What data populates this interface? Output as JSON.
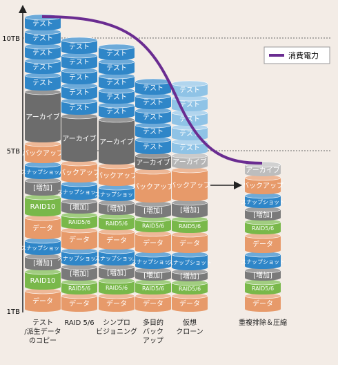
{
  "axis": {
    "ticks": [
      "10TB",
      "5TB",
      "1TB"
    ]
  },
  "legend": {
    "label": "消費電力",
    "color": "#6a2c91"
  },
  "columns": [
    {
      "label": [
        "テスト",
        "/派生データ",
        "のコピー"
      ],
      "segments": [
        {
          "label": "テスト",
          "color": "#2f86c8"
        },
        {
          "label": "テスト",
          "color": "#2f86c8"
        },
        {
          "label": "テスト",
          "color": "#2f86c8"
        },
        {
          "label": "テスト",
          "color": "#2f86c8"
        },
        {
          "label": "テスト",
          "color": "#2f86c8"
        },
        {
          "label": "アーカイブ",
          "color": "#6c6c6c"
        },
        {
          "label": "バックアップ",
          "color": "#e79a6a"
        },
        {
          "label": "スナップショット",
          "color": "#2f86c8"
        },
        {
          "label": "[増加]",
          "color": "#7a7a7a"
        },
        {
          "label": "RAID10",
          "color": "#79b84a"
        },
        {
          "label": "データ",
          "color": "#e79a6a"
        },
        {
          "label": "スナップショット",
          "color": "#2f86c8"
        },
        {
          "label": "[増加]",
          "color": "#7a7a7a"
        },
        {
          "label": "RAID10",
          "color": "#79b84a"
        },
        {
          "label": "データ",
          "color": "#e79a6a"
        }
      ]
    },
    {
      "label": [
        "RAID 5/6"
      ],
      "segments": [
        {
          "label": "テスト",
          "color": "#2f86c8"
        },
        {
          "label": "テスト",
          "color": "#2f86c8"
        },
        {
          "label": "テスト",
          "color": "#2f86c8"
        },
        {
          "label": "テスト",
          "color": "#2f86c8"
        },
        {
          "label": "テスト",
          "color": "#2f86c8"
        },
        {
          "label": "アーカイブ",
          "color": "#6c6c6c"
        },
        {
          "label": "バックアップ",
          "color": "#e79a6a"
        },
        {
          "label": "スナップショット",
          "color": "#2f86c8"
        },
        {
          "label": "[増加]",
          "color": "#7a7a7a"
        },
        {
          "label": "RAID5/6",
          "color": "#79b84a"
        },
        {
          "label": "データ",
          "color": "#e79a6a"
        },
        {
          "label": "スナップショット",
          "color": "#2f86c8"
        },
        {
          "label": "[増加]",
          "color": "#7a7a7a"
        },
        {
          "label": "RAID5/6",
          "color": "#79b84a"
        },
        {
          "label": "データ",
          "color": "#e79a6a"
        }
      ]
    },
    {
      "label": [
        "シンプロ",
        "ビジョニング"
      ],
      "segments": [
        {
          "label": "テスト",
          "color": "#2f86c8"
        },
        {
          "label": "テスト",
          "color": "#2f86c8"
        },
        {
          "label": "テスト",
          "color": "#2f86c8"
        },
        {
          "label": "テスト",
          "color": "#2f86c8"
        },
        {
          "label": "テスト",
          "color": "#2f86c8"
        },
        {
          "label": "アーカイブ",
          "color": "#6c6c6c"
        },
        {
          "label": "バックアップ",
          "color": "#e79a6a"
        },
        {
          "label": "スナップショット",
          "color": "#2f86c8"
        },
        {
          "label": "[増加]",
          "color": "#7a7a7a"
        },
        {
          "label": "RAID5/6",
          "color": "#79b84a"
        },
        {
          "label": "データ",
          "color": "#e79a6a"
        },
        {
          "label": "スナップショット",
          "color": "#2f86c8"
        },
        {
          "label": "[増加]",
          "color": "#7a7a7a"
        },
        {
          "label": "RAID5/6",
          "color": "#79b84a"
        },
        {
          "label": "データ",
          "color": "#e79a6a"
        }
      ]
    },
    {
      "label": [
        "多目的",
        "バック",
        "アップ"
      ],
      "segments": [
        {
          "label": "テスト",
          "color": "#2f86c8"
        },
        {
          "label": "テスト",
          "color": "#2f86c8"
        },
        {
          "label": "テスト",
          "color": "#2f86c8"
        },
        {
          "label": "テスト",
          "color": "#2f86c8"
        },
        {
          "label": "テスト",
          "color": "#2f86c8"
        },
        {
          "label": "アーカイブ",
          "color": "#6c6c6c"
        },
        {
          "label": "バックアップ",
          "color": "#e79a6a"
        },
        {
          "label": "[増加]",
          "color": "#7a7a7a"
        },
        {
          "label": "RAID5/6",
          "color": "#79b84a"
        },
        {
          "label": "データ",
          "color": "#e79a6a"
        },
        {
          "label": "スナップショット",
          "color": "#2f86c8"
        },
        {
          "label": "[増加]",
          "color": "#7a7a7a"
        },
        {
          "label": "RAID5/6",
          "color": "#79b84a"
        },
        {
          "label": "データ",
          "color": "#e79a6a"
        }
      ]
    },
    {
      "label": [
        "仮想",
        "クローン"
      ],
      "segments": [
        {
          "label": "テスト",
          "color": "#8fc3e6"
        },
        {
          "label": "テスト",
          "color": "#8fc3e6"
        },
        {
          "label": "テスト",
          "color": "#8fc3e6"
        },
        {
          "label": "テスト",
          "color": "#8fc3e6"
        },
        {
          "label": "テスト",
          "color": "#8fc3e6"
        },
        {
          "label": "アーカイブ",
          "color": "#b5b5b5"
        },
        {
          "label": "バックアップ",
          "color": "#e79a6a"
        },
        {
          "label": "[増加]",
          "color": "#7a7a7a"
        },
        {
          "label": "RAID5/6",
          "color": "#79b84a"
        },
        {
          "label": "データ",
          "color": "#e79a6a"
        },
        {
          "label": "スナップショット",
          "color": "#2f86c8"
        },
        {
          "label": "[増加]",
          "color": "#7a7a7a"
        },
        {
          "label": "RAID5/6",
          "color": "#79b84a"
        },
        {
          "label": "データ",
          "color": "#e79a6a"
        }
      ]
    },
    {
      "label": [
        "重複排除＆圧縮"
      ],
      "segments": [
        {
          "label": "アーカイブ",
          "color": "#bdbdbd"
        },
        {
          "label": "バックアップ",
          "color": "#e79a6a"
        },
        {
          "label": "スナップショット",
          "color": "#2f86c8"
        },
        {
          "label": "[増加]",
          "color": "#7a7a7a"
        },
        {
          "label": "RAID5/6",
          "color": "#79b84a"
        },
        {
          "label": "データ",
          "color": "#e79a6a"
        },
        {
          "label": "スナップショット",
          "color": "#2f86c8"
        },
        {
          "label": "[増加]",
          "color": "#7a7a7a"
        },
        {
          "label": "RAID5/6",
          "color": "#79b84a"
        },
        {
          "label": "データ",
          "color": "#e79a6a"
        }
      ]
    }
  ]
}
